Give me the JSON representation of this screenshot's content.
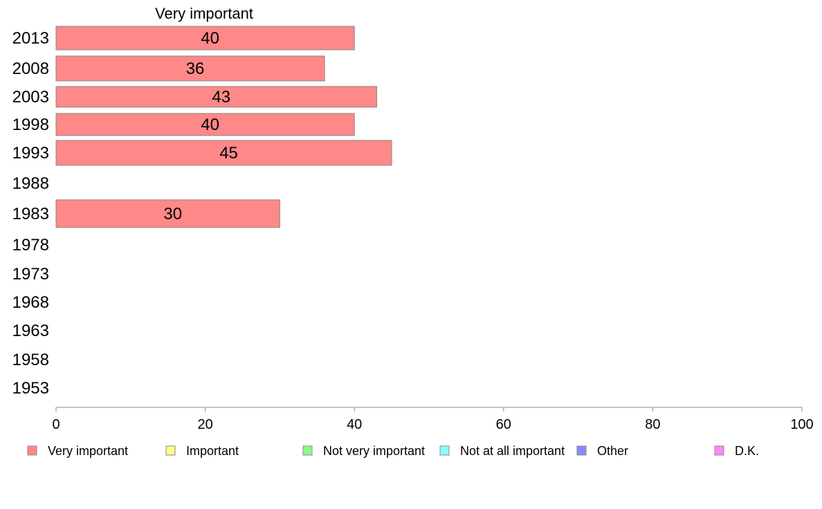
{
  "chart_data": {
    "type": "bar",
    "orientation": "horizontal",
    "title": "",
    "panel_title": "Very important",
    "categories": [
      "2013",
      "2008",
      "2003",
      "1998",
      "1993",
      "1988",
      "1983",
      "1978",
      "1973",
      "1968",
      "1963",
      "1958",
      "1953"
    ],
    "series": [
      {
        "name": "Very important",
        "color": "#ff8888",
        "values": [
          40,
          36,
          43,
          40,
          45,
          null,
          30,
          null,
          null,
          null,
          null,
          null,
          null
        ]
      }
    ],
    "xlim": [
      0,
      100
    ],
    "xticks": [
      0,
      20,
      40,
      60,
      80,
      100
    ],
    "grid": false,
    "legend": {
      "placement": "bottom",
      "items": [
        {
          "label": "Very important",
          "color": "#ff8888"
        },
        {
          "label": "Important",
          "color": "#ffff88"
        },
        {
          "label": "Not very important",
          "color": "#88ff88"
        },
        {
          "label": "Not at all important",
          "color": "#88ffff"
        },
        {
          "label": "Other",
          "color": "#8888ff"
        },
        {
          "label": "D.K.",
          "color": "#ff88ff"
        }
      ]
    }
  }
}
